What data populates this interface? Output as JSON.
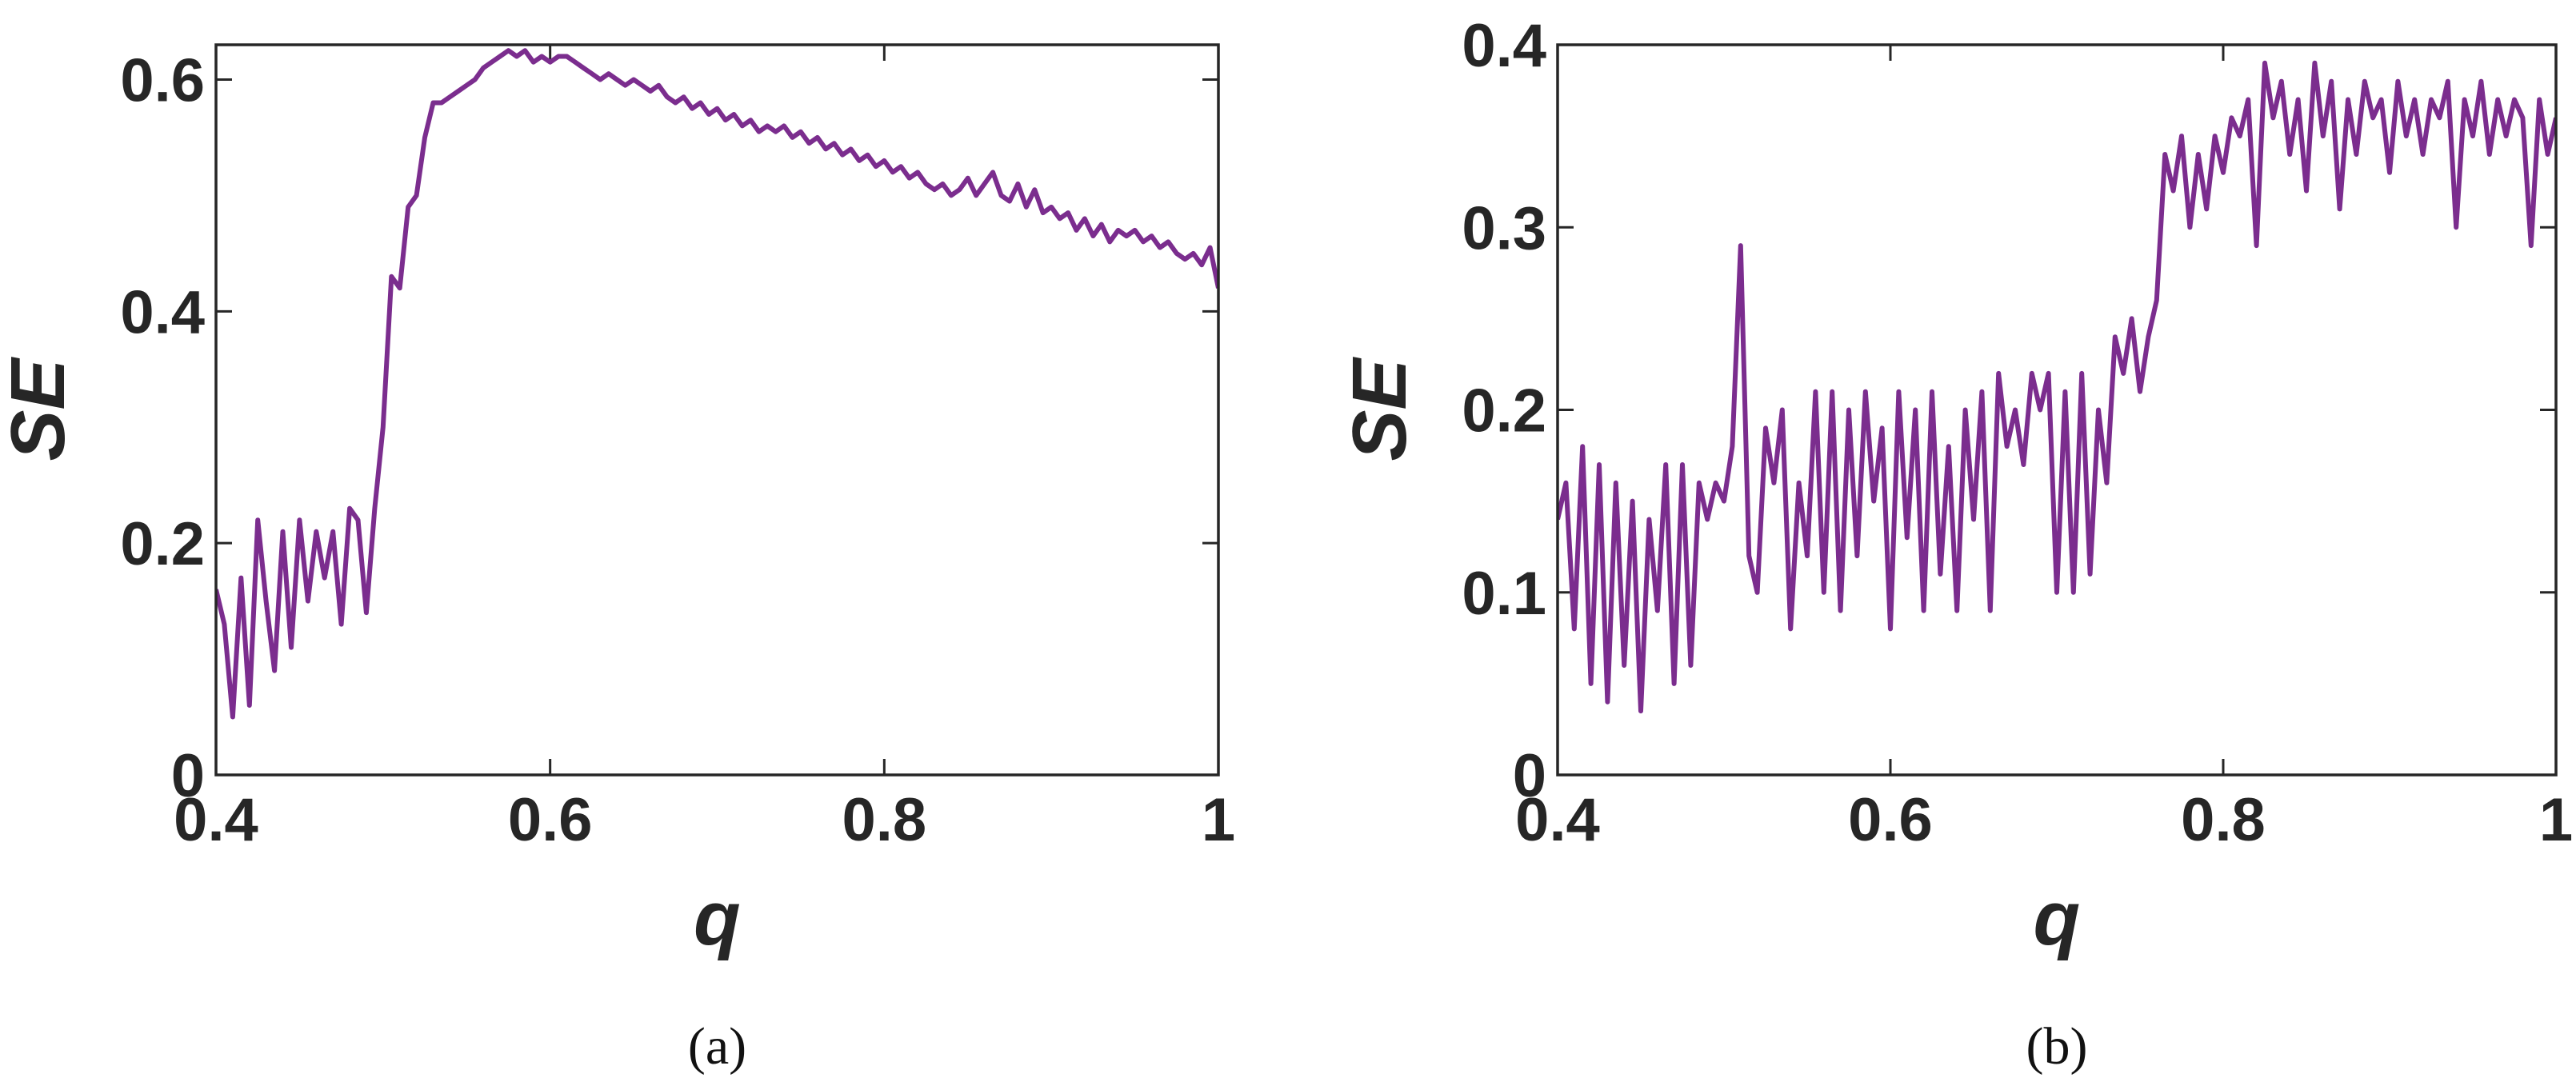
{
  "chart_data": [
    {
      "type": "line",
      "caption": "(a)",
      "xlabel": "q",
      "ylabel": "SE",
      "color": "#7b2d8e",
      "xlim": [
        0.4,
        1
      ],
      "ylim": [
        0,
        0.63
      ],
      "xticks": [
        0.4,
        0.6,
        0.8,
        1
      ],
      "yticks": [
        0,
        0.2,
        0.4,
        0.6
      ],
      "grid": false,
      "x": [
        0.4,
        0.405,
        0.41,
        0.415,
        0.42,
        0.425,
        0.43,
        0.435,
        0.44,
        0.445,
        0.45,
        0.455,
        0.46,
        0.465,
        0.47,
        0.475,
        0.48,
        0.485,
        0.49,
        0.495,
        0.5,
        0.505,
        0.51,
        0.515,
        0.52,
        0.525,
        0.53,
        0.535,
        0.54,
        0.545,
        0.55,
        0.555,
        0.56,
        0.565,
        0.57,
        0.575,
        0.58,
        0.585,
        0.59,
        0.595,
        0.6,
        0.605,
        0.61,
        0.615,
        0.62,
        0.625,
        0.63,
        0.635,
        0.64,
        0.645,
        0.65,
        0.655,
        0.66,
        0.665,
        0.67,
        0.675,
        0.68,
        0.685,
        0.69,
        0.695,
        0.7,
        0.705,
        0.71,
        0.715,
        0.72,
        0.725,
        0.73,
        0.735,
        0.74,
        0.745,
        0.75,
        0.755,
        0.76,
        0.765,
        0.77,
        0.775,
        0.78,
        0.785,
        0.79,
        0.795,
        0.8,
        0.805,
        0.81,
        0.815,
        0.82,
        0.825,
        0.83,
        0.835,
        0.84,
        0.845,
        0.85,
        0.855,
        0.86,
        0.865,
        0.87,
        0.875,
        0.88,
        0.885,
        0.89,
        0.895,
        0.9,
        0.905,
        0.91,
        0.915,
        0.92,
        0.925,
        0.93,
        0.935,
        0.94,
        0.945,
        0.95,
        0.955,
        0.96,
        0.965,
        0.97,
        0.975,
        0.98,
        0.985,
        0.99,
        0.995,
        1
      ],
      "values": [
        0.16,
        0.13,
        0.05,
        0.17,
        0.06,
        0.22,
        0.15,
        0.09,
        0.21,
        0.11,
        0.22,
        0.15,
        0.21,
        0.17,
        0.21,
        0.13,
        0.23,
        0.22,
        0.14,
        0.23,
        0.3,
        0.43,
        0.42,
        0.49,
        0.5,
        0.55,
        0.58,
        0.58,
        0.585,
        0.59,
        0.595,
        0.6,
        0.61,
        0.615,
        0.62,
        0.625,
        0.62,
        0.625,
        0.615,
        0.62,
        0.615,
        0.62,
        0.62,
        0.615,
        0.61,
        0.605,
        0.6,
        0.605,
        0.6,
        0.595,
        0.6,
        0.595,
        0.59,
        0.595,
        0.585,
        0.58,
        0.585,
        0.575,
        0.58,
        0.57,
        0.575,
        0.565,
        0.57,
        0.56,
        0.565,
        0.555,
        0.56,
        0.555,
        0.56,
        0.55,
        0.555,
        0.545,
        0.55,
        0.54,
        0.545,
        0.535,
        0.54,
        0.53,
        0.535,
        0.525,
        0.53,
        0.52,
        0.525,
        0.515,
        0.52,
        0.51,
        0.505,
        0.51,
        0.5,
        0.505,
        0.515,
        0.5,
        0.51,
        0.52,
        0.5,
        0.495,
        0.51,
        0.49,
        0.505,
        0.485,
        0.49,
        0.48,
        0.485,
        0.47,
        0.48,
        0.465,
        0.475,
        0.46,
        0.47,
        0.465,
        0.47,
        0.46,
        0.465,
        0.455,
        0.46,
        0.45,
        0.445,
        0.45,
        0.44,
        0.455,
        0.42
      ]
    },
    {
      "type": "line",
      "caption": "(b)",
      "xlabel": "q",
      "ylabel": "SE",
      "color": "#7b2d8e",
      "xlim": [
        0.4,
        1
      ],
      "ylim": [
        0,
        0.4
      ],
      "xticks": [
        0.4,
        0.6,
        0.8,
        1
      ],
      "yticks": [
        0,
        0.1,
        0.2,
        0.3,
        0.4
      ],
      "grid": false,
      "x": [
        0.4,
        0.405,
        0.41,
        0.415,
        0.42,
        0.425,
        0.43,
        0.435,
        0.44,
        0.445,
        0.45,
        0.455,
        0.46,
        0.465,
        0.47,
        0.475,
        0.48,
        0.485,
        0.49,
        0.495,
        0.5,
        0.505,
        0.51,
        0.515,
        0.52,
        0.525,
        0.53,
        0.535,
        0.54,
        0.545,
        0.55,
        0.555,
        0.56,
        0.565,
        0.57,
        0.575,
        0.58,
        0.585,
        0.59,
        0.595,
        0.6,
        0.605,
        0.61,
        0.615,
        0.62,
        0.625,
        0.63,
        0.635,
        0.64,
        0.645,
        0.65,
        0.655,
        0.66,
        0.665,
        0.67,
        0.675,
        0.68,
        0.685,
        0.69,
        0.695,
        0.7,
        0.705,
        0.71,
        0.715,
        0.72,
        0.725,
        0.73,
        0.735,
        0.74,
        0.745,
        0.75,
        0.755,
        0.76,
        0.765,
        0.77,
        0.775,
        0.78,
        0.785,
        0.79,
        0.795,
        0.8,
        0.805,
        0.81,
        0.815,
        0.82,
        0.825,
        0.83,
        0.835,
        0.84,
        0.845,
        0.85,
        0.855,
        0.86,
        0.865,
        0.87,
        0.875,
        0.88,
        0.885,
        0.89,
        0.895,
        0.9,
        0.905,
        0.91,
        0.915,
        0.92,
        0.925,
        0.93,
        0.935,
        0.94,
        0.945,
        0.95,
        0.955,
        0.96,
        0.965,
        0.97,
        0.975,
        0.98,
        0.985,
        0.99,
        0.995,
        1
      ],
      "values": [
        0.14,
        0.16,
        0.08,
        0.18,
        0.05,
        0.17,
        0.04,
        0.16,
        0.06,
        0.15,
        0.035,
        0.14,
        0.09,
        0.17,
        0.05,
        0.17,
        0.06,
        0.16,
        0.14,
        0.16,
        0.15,
        0.18,
        0.29,
        0.12,
        0.1,
        0.19,
        0.16,
        0.2,
        0.08,
        0.16,
        0.12,
        0.21,
        0.1,
        0.21,
        0.09,
        0.2,
        0.12,
        0.21,
        0.15,
        0.19,
        0.08,
        0.21,
        0.13,
        0.2,
        0.09,
        0.21,
        0.11,
        0.18,
        0.09,
        0.2,
        0.14,
        0.21,
        0.09,
        0.22,
        0.18,
        0.2,
        0.17,
        0.22,
        0.2,
        0.22,
        0.1,
        0.21,
        0.1,
        0.22,
        0.11,
        0.2,
        0.16,
        0.24,
        0.22,
        0.25,
        0.21,
        0.24,
        0.26,
        0.34,
        0.32,
        0.35,
        0.3,
        0.34,
        0.31,
        0.35,
        0.33,
        0.36,
        0.35,
        0.37,
        0.29,
        0.39,
        0.36,
        0.38,
        0.34,
        0.37,
        0.32,
        0.39,
        0.35,
        0.38,
        0.31,
        0.37,
        0.34,
        0.38,
        0.36,
        0.37,
        0.33,
        0.38,
        0.35,
        0.37,
        0.34,
        0.37,
        0.36,
        0.38,
        0.3,
        0.37,
        0.35,
        0.38,
        0.34,
        0.37,
        0.35,
        0.37,
        0.36,
        0.29,
        0.37,
        0.34,
        0.36
      ]
    }
  ]
}
